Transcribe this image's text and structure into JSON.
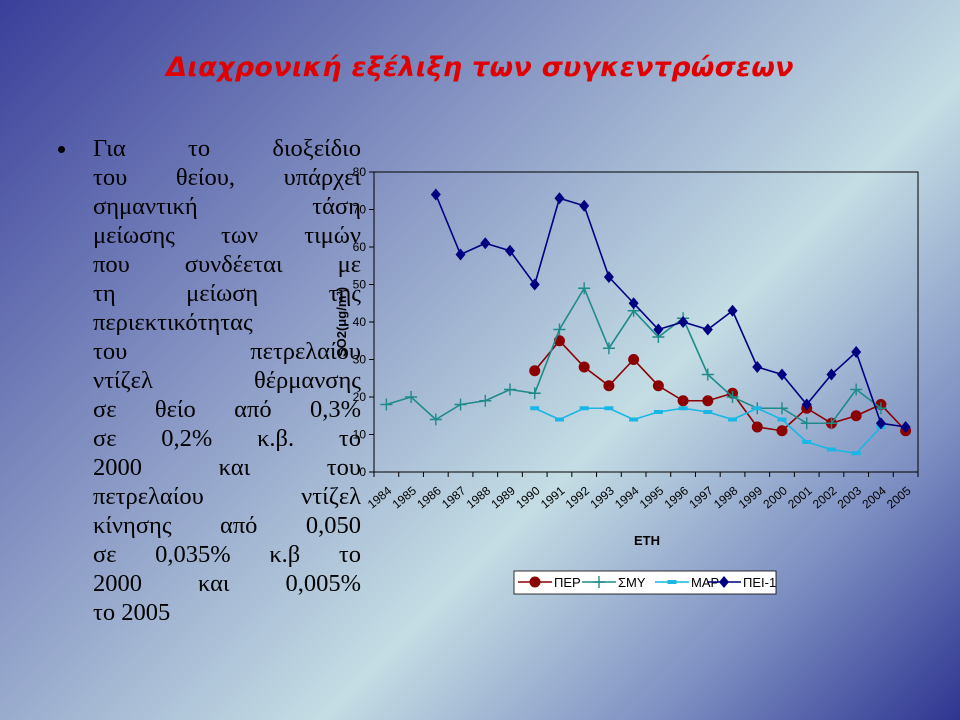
{
  "slide": {
    "title": "Διαχρονική εξέλιξη των συγκεντρώσεων",
    "bullet_lines": [
      "Για το διοξείδιο",
      "του θείου, υπάρχει",
      "σημαντική τάση",
      "μείωσης των τιμών",
      "που συνδέεται με",
      "τη μείωση της",
      "περιεκτικότητας",
      "του πετρελαίου",
      "ντίζελ θέρμανσης",
      "σε θείο από 0,3%",
      "σε 0,2% κ.β. το",
      "2000 και του",
      "πετρελαίου ντίζελ",
      "κίνησης από 0,050",
      "σε 0,035% κ.β το",
      "2000 και 0,005%",
      "το 2005"
    ]
  },
  "chart_data": {
    "type": "line",
    "xlabel": "ΕΤΗ",
    "ylabel": "SO2(μg/m³)",
    "ylim": [
      0,
      80
    ],
    "yticks": [
      0,
      10,
      20,
      30,
      40,
      50,
      60,
      70,
      80
    ],
    "categories": [
      "1984",
      "1985",
      "1986",
      "1987",
      "1988",
      "1989",
      "1990",
      "1991",
      "1992",
      "1993",
      "1994",
      "1995",
      "1996",
      "1997",
      "1998",
      "1999",
      "2000",
      "2001",
      "2002",
      "2003",
      "2004",
      "2005"
    ],
    "grid": false,
    "legend_position": "bottom",
    "series": [
      {
        "name": "ΠΕΡ",
        "color": "#8b0000",
        "marker": "circle",
        "values": [
          null,
          null,
          null,
          null,
          null,
          null,
          27,
          35,
          28,
          23,
          30,
          23,
          19,
          19,
          21,
          12,
          11,
          17,
          13,
          15,
          18,
          11
        ]
      },
      {
        "name": "ΣΜΥ",
        "color": "#1f8a8a",
        "marker": "plus",
        "values": [
          18,
          20,
          14,
          18,
          19,
          22,
          21,
          38,
          49,
          33,
          43,
          36,
          41,
          26,
          20,
          17,
          17,
          13,
          13,
          22,
          17,
          null
        ]
      },
      {
        "name": "ΜΑΡ",
        "color": "#19b6e6",
        "marker": "dash",
        "values": [
          null,
          null,
          null,
          null,
          null,
          null,
          17,
          14,
          17,
          17,
          14,
          16,
          17,
          16,
          14,
          17,
          14,
          8,
          6,
          5,
          12,
          null
        ]
      },
      {
        "name": "ΠΕΙ-1",
        "color": "#000080",
        "marker": "diamond",
        "values": [
          null,
          null,
          74,
          58,
          61,
          59,
          50,
          73,
          71,
          52,
          45,
          38,
          40,
          38,
          43,
          28,
          26,
          18,
          26,
          32,
          13,
          12
        ]
      }
    ]
  }
}
